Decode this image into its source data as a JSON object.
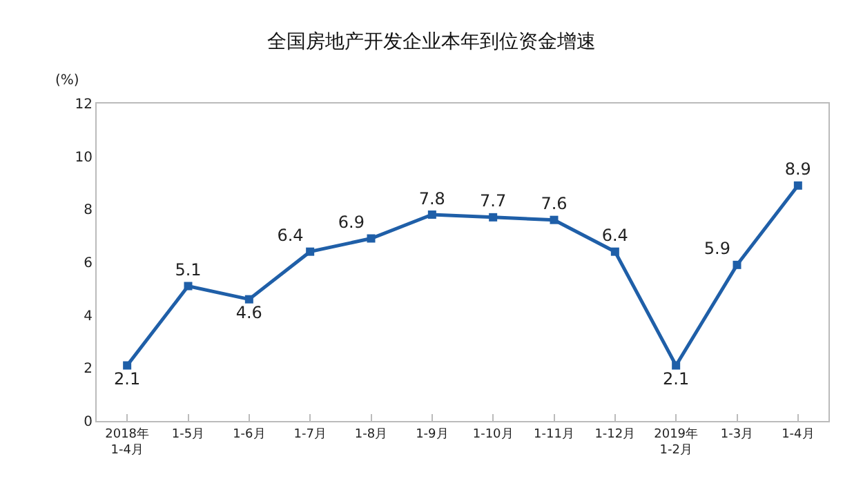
{
  "chart_data": {
    "type": "line",
    "title": "全国房地产开发企业本年到位资金增速",
    "ylabel": "(%)",
    "categories": [
      "2018年\n1-4月",
      "1-5月",
      "1-6月",
      "1-7月",
      "1-8月",
      "1-9月",
      "1-10月",
      "1-11月",
      "1-12月",
      "2019年\n1-2月",
      "1-3月",
      "1-4月"
    ],
    "series": [
      {
        "color": "#1f5fa8",
        "values": [
          2.1,
          5.1,
          4.6,
          6.4,
          6.9,
          7.8,
          7.7,
          7.6,
          6.4,
          2.1,
          5.9,
          8.9
        ]
      }
    ],
    "ylim": [
      0,
      12
    ],
    "yticks": [
      0,
      2,
      4,
      6,
      8,
      10,
      12
    ],
    "legend": false,
    "marker": "square",
    "line_style": "solid",
    "data_labels": true
  }
}
